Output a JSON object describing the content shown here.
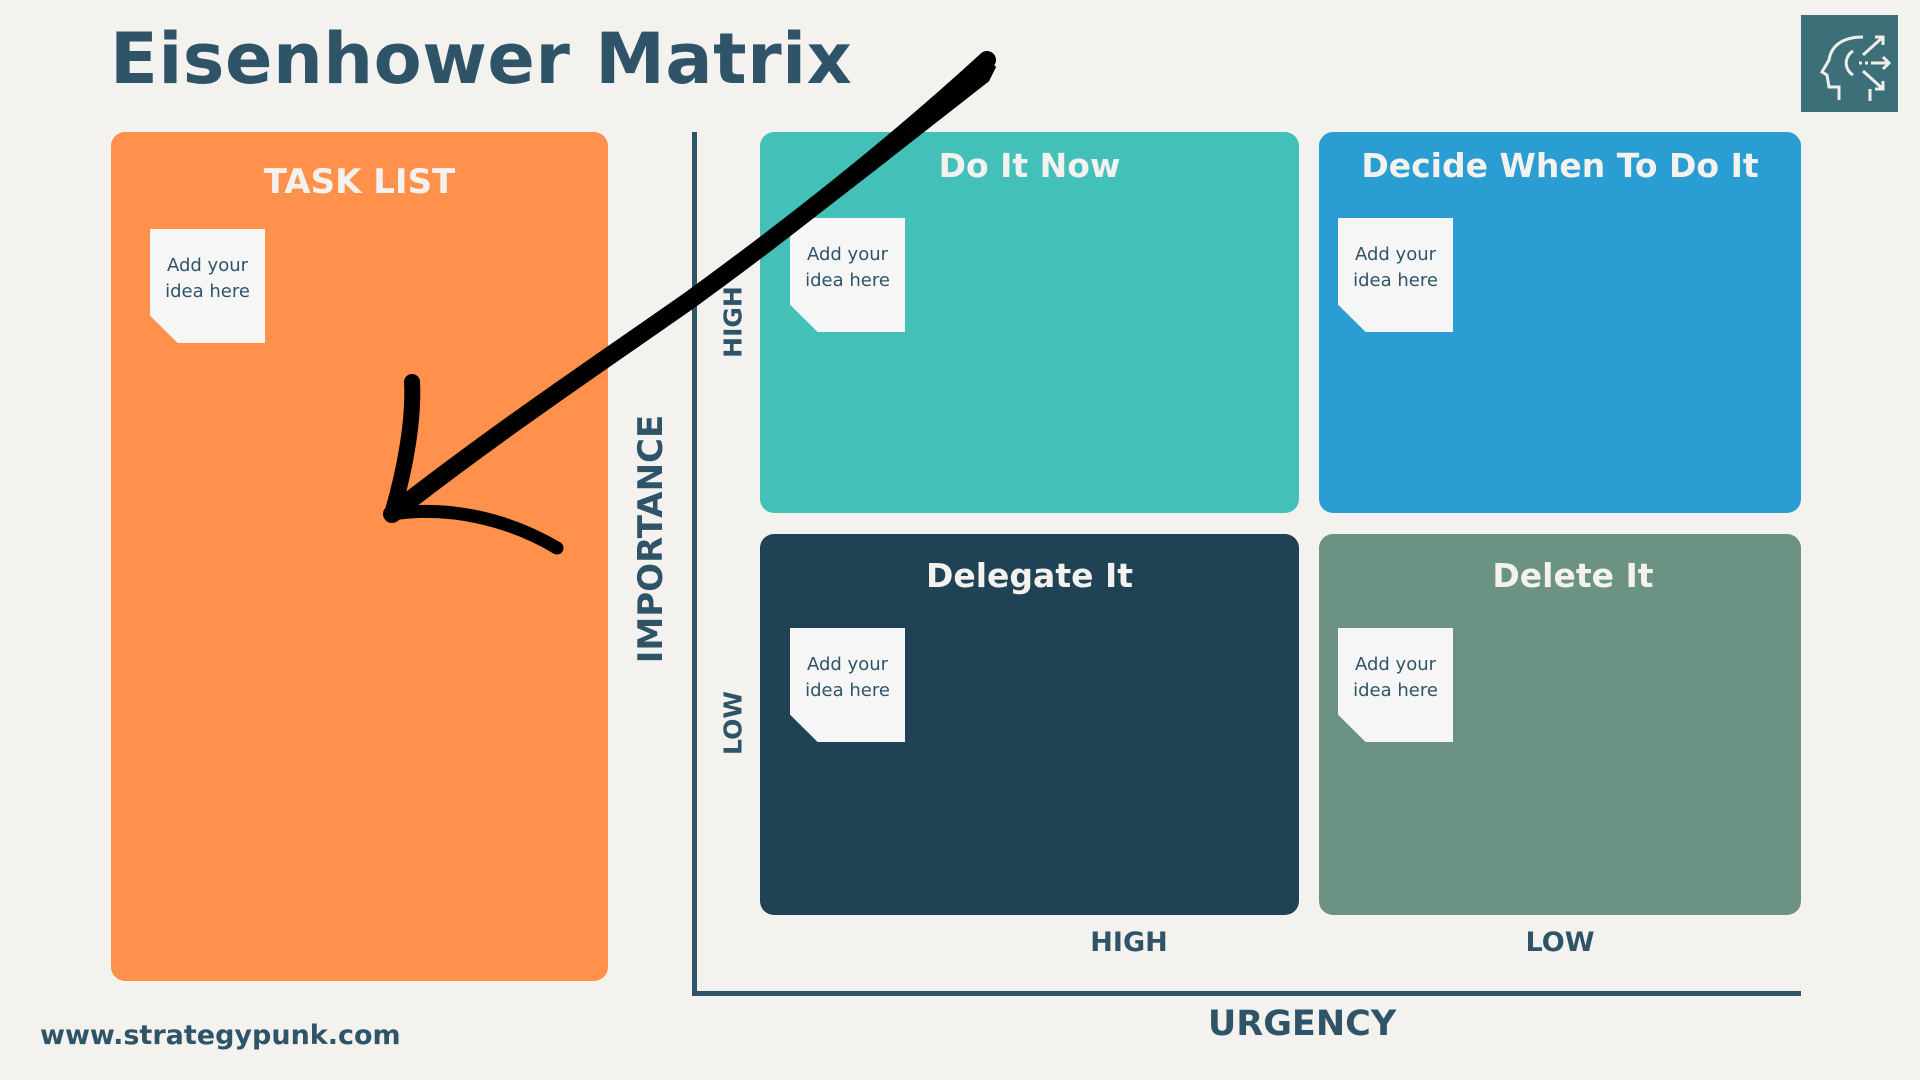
{
  "title": "Eisenhower Matrix",
  "task_list": {
    "heading": "TASK LIST",
    "note": "Add your idea here",
    "color": "#ff914d"
  },
  "quadrants": [
    {
      "heading": "Do It Now",
      "note": "Add your idea here",
      "color": "#43c0b8"
    },
    {
      "heading": "Decide When To Do It",
      "note": "Add your idea here",
      "color": "#2a9dd3"
    },
    {
      "heading": "Delegate It",
      "note": "Add your idea here",
      "color": "#1f4255"
    },
    {
      "heading": "Delete It",
      "note": "Add your idea here",
      "color": "#6c9283"
    }
  ],
  "axes": {
    "y_label": "IMPORTANCE",
    "y_high": "HIGH",
    "y_low": "LOW",
    "x_label": "URGENCY",
    "x_high": "HIGH",
    "x_low": "LOW"
  },
  "footer": {
    "website": "www.strategypunk.com"
  },
  "icons": {
    "logo": "head-with-arrows-icon",
    "annotation": "hand-drawn-arrow"
  }
}
